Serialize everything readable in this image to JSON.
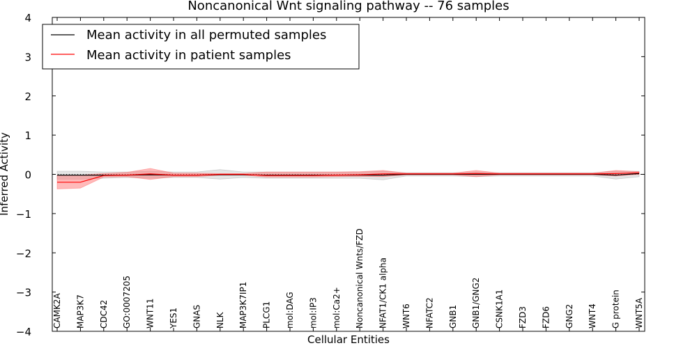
{
  "chart_data": {
    "type": "line",
    "title": "Noncanonical Wnt signaling pathway -- 76 samples",
    "xlabel": "Cellular Entities",
    "ylabel": "Inferred Activity",
    "ylim": [
      -4,
      4
    ],
    "yticks": [
      "−4",
      "−3",
      "−2",
      "−1",
      "0",
      "1",
      "2",
      "3",
      "4"
    ],
    "categories": [
      "CAMK2A",
      "MAP3K7",
      "CDC42",
      "GO:0007205",
      "WNT11",
      "YES1",
      "GNAS",
      "NLK",
      "MAP3K7IP1",
      "PLCG1",
      "mol:DAG",
      "mol:IP3",
      "mol:Ca2+",
      "Noncanonical Wnts/FZD",
      "NFAT1/CK1 alpha",
      "WNT6",
      "NFATC2",
      "GNB1",
      "GNB1/GNG2",
      "CSNK1A1",
      "FZD3",
      "FZD6",
      "GNG2",
      "WNT4",
      "G protein",
      "WNT5A"
    ],
    "legend_position": "top-left",
    "colors": {
      "permuted": "#000000",
      "patient": "#ff0000",
      "permuted_band": "#aaaaaa",
      "patient_band": "#ff6666"
    },
    "series": [
      {
        "name": "Mean activity in all permuted samples",
        "values": [
          -0.02,
          -0.02,
          -0.02,
          -0.02,
          -0.01,
          -0.02,
          -0.02,
          -0.01,
          -0.01,
          -0.02,
          -0.02,
          -0.02,
          -0.02,
          -0.02,
          -0.02,
          0.0,
          0.0,
          0.0,
          0.0,
          0.0,
          0.0,
          0.0,
          0.0,
          0.0,
          -0.02,
          0.02
        ],
        "lower": [
          -0.12,
          -0.12,
          -0.1,
          -0.08,
          -0.1,
          -0.08,
          -0.08,
          -0.12,
          -0.08,
          -0.1,
          -0.1,
          -0.1,
          -0.1,
          -0.1,
          -0.14,
          -0.04,
          -0.04,
          -0.04,
          -0.06,
          -0.04,
          -0.04,
          -0.04,
          -0.04,
          -0.04,
          -0.12,
          -0.06
        ],
        "upper": [
          0.08,
          0.08,
          0.06,
          0.06,
          0.08,
          0.06,
          0.06,
          0.12,
          0.06,
          0.06,
          0.06,
          0.06,
          0.06,
          0.06,
          0.08,
          0.04,
          0.04,
          0.04,
          0.06,
          0.04,
          0.04,
          0.04,
          0.04,
          0.04,
          0.08,
          0.08
        ]
      },
      {
        "name": "Mean activity in patient samples",
        "values": [
          -0.2,
          -0.2,
          -0.03,
          -0.02,
          0.01,
          -0.02,
          -0.02,
          0.0,
          0.0,
          -0.03,
          -0.03,
          -0.03,
          -0.02,
          -0.01,
          0.01,
          0.01,
          0.01,
          0.01,
          0.02,
          0.01,
          0.01,
          0.01,
          0.01,
          0.01,
          0.02,
          0.04
        ],
        "lower": [
          -0.37,
          -0.35,
          -0.07,
          -0.06,
          -0.13,
          -0.06,
          -0.06,
          -0.02,
          -0.02,
          -0.07,
          -0.07,
          -0.07,
          -0.06,
          -0.05,
          -0.06,
          -0.01,
          -0.01,
          -0.01,
          -0.06,
          -0.01,
          -0.01,
          -0.01,
          -0.01,
          -0.01,
          -0.04,
          0.0
        ],
        "upper": [
          -0.02,
          -0.02,
          0.02,
          0.05,
          0.15,
          0.03,
          0.03,
          0.02,
          0.02,
          0.06,
          0.06,
          0.06,
          0.06,
          0.07,
          0.1,
          0.03,
          0.03,
          0.03,
          0.1,
          0.03,
          0.03,
          0.03,
          0.03,
          0.03,
          0.1,
          0.07
        ]
      }
    ]
  }
}
